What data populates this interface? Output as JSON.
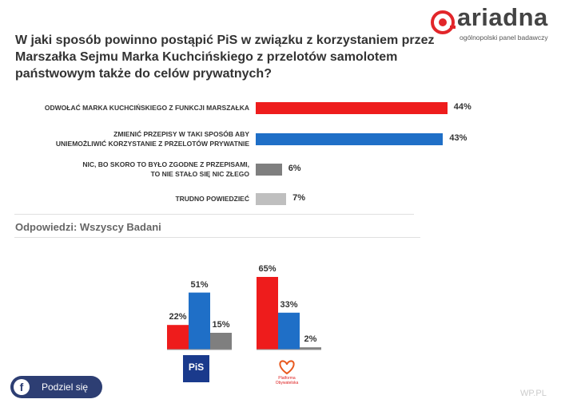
{
  "logo": {
    "name": "ariadna",
    "subtitle": "ogólnopolski panel badawczy"
  },
  "title": "W jaki sposób powinno postąpić PiS w związku z korzystaniem przez Marszałka Sejmu Marka Kuchcińskiego z przelotów samolotem państwowym także do celów prywatnych?",
  "colors": {
    "red": "#ee1c1c",
    "blue": "#1f6fc7",
    "darkgray": "#7f7f7f",
    "lightgray": "#bfbfbf"
  },
  "chart_data": [
    {
      "type": "bar",
      "orientation": "horizontal",
      "categories": [
        [
          "ODWOŁAĆ MARKA KUCHCIŃSKIEGO Z FUNKCJI MARSZAŁKA"
        ],
        [
          "ZMIENIĆ PRZEPISY W TAKI SPOSÓB ABY",
          "UNIEMOŻLIWIĆ KORZYSTANIE Z PRZELOTÓW PRYWATNIE"
        ],
        [
          "NIC, BO SKORO TO BYŁO ZGODNE Z PRZEPISAMI,",
          "TO NIE STAŁO SIĘ NIC ZŁEGO"
        ],
        [
          "TRUDNO POWIEDZIEĆ"
        ]
      ],
      "values": [
        44,
        43,
        6,
        7
      ],
      "labels": [
        "44%",
        "43%",
        "6%",
        "7%"
      ],
      "colors": [
        "#ee1c1c",
        "#1f6fc7",
        "#7f7f7f",
        "#bfbfbf"
      ]
    },
    {
      "type": "bar",
      "orientation": "vertical",
      "groups": [
        {
          "name": "PiS",
          "values": [
            22,
            51,
            15
          ],
          "labels": [
            "22%",
            "51%",
            "15%"
          ]
        },
        {
          "name": "Platforma Obywatelska",
          "values": [
            65,
            33,
            2
          ],
          "labels": [
            "65%",
            "33%",
            "2%"
          ]
        }
      ],
      "colors": [
        "#ee1c1c",
        "#1f6fc7",
        "#7f7f7f"
      ]
    }
  ],
  "respondents_label": "Odpowiedzi: Wszyscy Badani",
  "party_logos": {
    "pis": "PiS",
    "po": "Platforma Obywatelska"
  },
  "share": {
    "label": "Podziel się",
    "icon": "facebook-icon"
  },
  "watermark": "WP.PL"
}
